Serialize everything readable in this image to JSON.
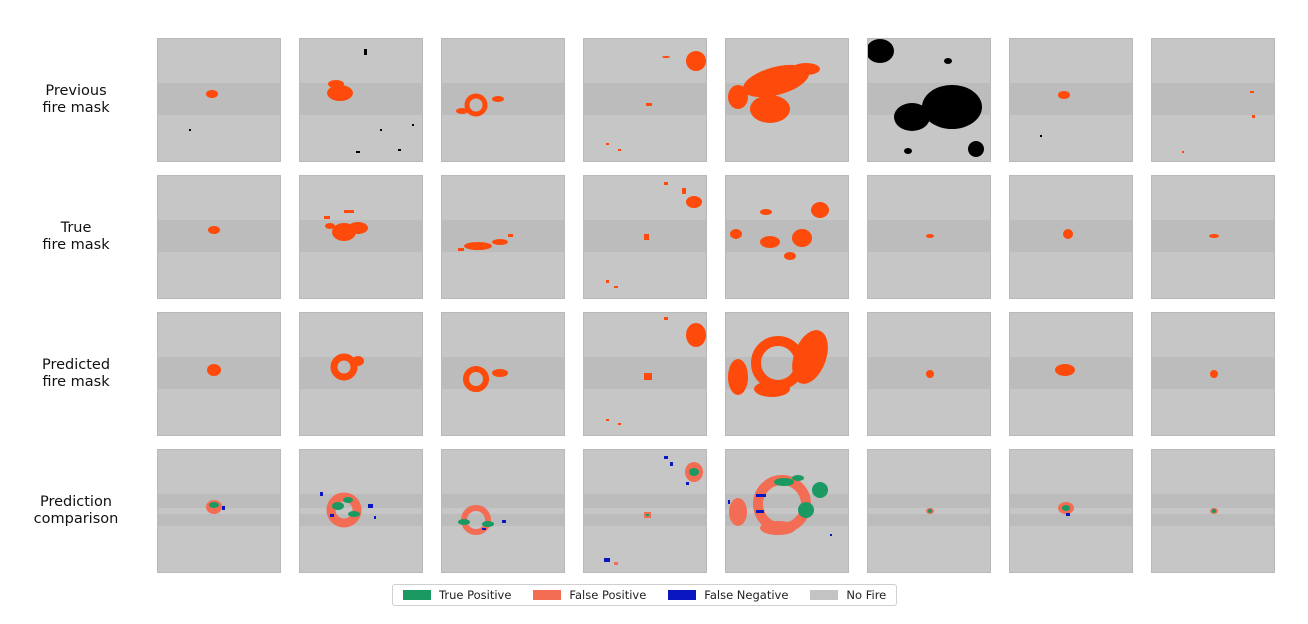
{
  "rows": [
    {
      "id": "previous",
      "label_lines": [
        "Previous",
        "fire mask"
      ]
    },
    {
      "id": "true",
      "label_lines": [
        "True",
        "fire mask"
      ]
    },
    {
      "id": "predicted",
      "label_lines": [
        "Predicted",
        "fire mask"
      ]
    },
    {
      "id": "comparison",
      "label_lines": [
        "Prediction",
        "comparison"
      ]
    }
  ],
  "columns": 8,
  "legend": [
    {
      "label": "True Positive",
      "color": "#1a9a62"
    },
    {
      "label": "False Positive",
      "color": "#f36c54"
    },
    {
      "label": "False Negative",
      "color": "#0a17c0"
    },
    {
      "label": "No Fire",
      "color": "#c3c3c3"
    }
  ],
  "colors": {
    "background": "#c6c6c6",
    "band": "#bcbcbc",
    "fire": "#fe4a0a",
    "unknown": "#000000",
    "true_positive": "#1a9a62",
    "false_positive": "#f36c54",
    "false_negative": "#0a17c0"
  }
}
